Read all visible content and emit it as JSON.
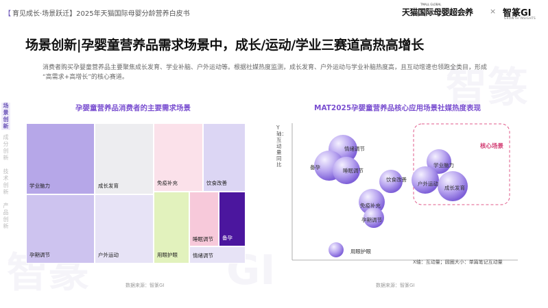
{
  "header": {
    "bracket_open": "【",
    "section": "育见成长·场景跃迁】2025年天猫国际母婴分龄营养白皮书",
    "logo1_small": "TMALL GLOBAL",
    "logo1": "天猫国际母婴超会养",
    "separator": "×",
    "logo2": "智篆GI",
    "logo2_sub": "GROWTH INSIGHTS"
  },
  "title": "场景创新|孕婴童营养品需求场景中，成长/运动/学业三赛道高热高增长",
  "description": {
    "line1": "消费者购买孕婴童营养品主要聚焦成长发育、学业补脑、户外运动等。根据社媒热度监测，成长发育、户外运动与学业补脑热度高，且互动增速也领跑全类目，形成",
    "line2": "“高需求+高增长”的核心赛道。"
  },
  "side_nav": [
    {
      "label": "场景创新",
      "active": true
    },
    {
      "label": "成分创新",
      "active": false
    },
    {
      "label": "技术创新",
      "active": false
    },
    {
      "label": "产品创新",
      "active": false
    }
  ],
  "chart_data": [
    {
      "type": "treemap",
      "title": "孕婴童营养品消费者的主要需求场景",
      "items": [
        {
          "label": "学业脑力",
          "color": "#b6a7e8"
        },
        {
          "label": "成长发育",
          "color": "#ededf0"
        },
        {
          "label": "孕期调节",
          "color": "#cdc3ef"
        },
        {
          "label": "户外运动",
          "color": "#e7e3f6"
        },
        {
          "label": "免疫补充",
          "color": "#fbe1ea"
        },
        {
          "label": "饮食改善",
          "color": "#dcd6f4"
        },
        {
          "label": "用眼护眼",
          "color": "#e2f2bd"
        },
        {
          "label": "睡眠调节",
          "color": "#f7c9da"
        },
        {
          "label": "备孕",
          "color": "#4b169e"
        },
        {
          "label": "情绪调节",
          "color": "#e7e3f6"
        }
      ]
    },
    {
      "type": "scatter",
      "title": "MAT2025孕婴童营养品核心应用场景社媒热度表现",
      "ylabel": "Y轴：互动量同比",
      "x_note": "X轴：互动量；圆圈大小：单篇笔记互动量",
      "highlight_label": "核心场景",
      "points": [
        {
          "label": "情绪调节",
          "size": 0.9
        },
        {
          "label": "备孕",
          "size": 0.9
        },
        {
          "label": "睡眠调节",
          "size": 0.8
        },
        {
          "label": "饮食改善",
          "size": 0.7
        },
        {
          "label": "免疫补充",
          "size": 0.8
        },
        {
          "label": "孕期调节",
          "size": 0.6
        },
        {
          "label": "学业脑力",
          "size": 0.7
        },
        {
          "label": "户外运动",
          "size": 0.8
        },
        {
          "label": "成长发育",
          "size": 0.9
        },
        {
          "label": "用眼护眼",
          "size": 0.4
        }
      ]
    }
  ],
  "source_left": "数据来源：智篆GI",
  "source_right": "数据来源：智篆GI",
  "watermark": [
    "智篆",
    "GI",
    "智篆"
  ]
}
